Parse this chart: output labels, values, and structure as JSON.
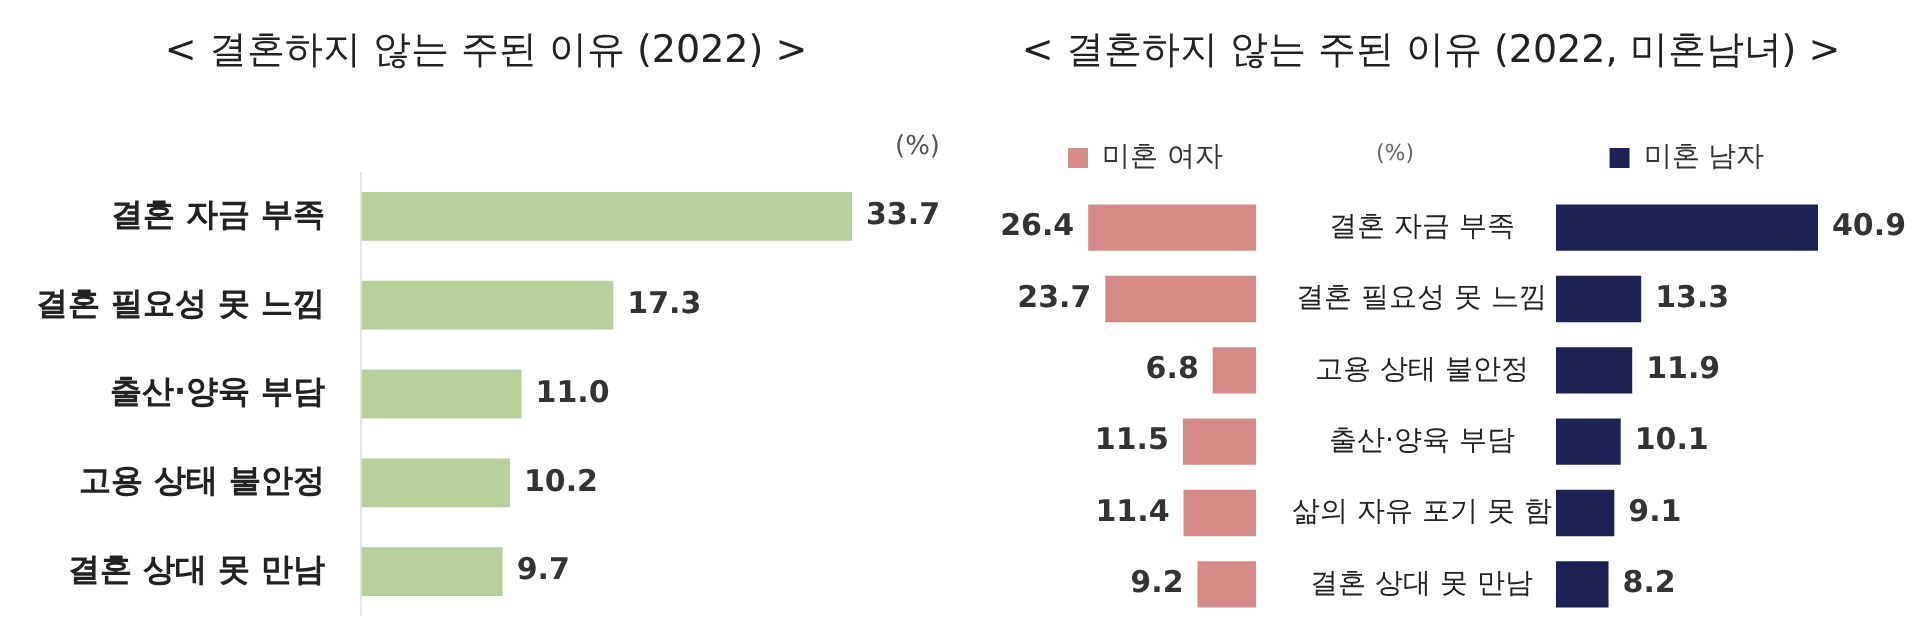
{
  "chart_data": [
    {
      "type": "bar",
      "orientation": "horizontal",
      "title": "< 결혼하지 않는 주된 이유 (2022) >",
      "categories": [
        "결혼 자금 부족",
        "결혼 필요성 못 느낌",
        "출산·양육 부담",
        "고용 상태 불안정",
        "결혼 상대 못 만남"
      ],
      "values": [
        33.7,
        17.3,
        11.0,
        10.2,
        9.7
      ],
      "color": "#b7cf9a",
      "value_labels": [
        "33.7",
        "17.3",
        "11.0",
        "10.2",
        "9.7"
      ],
      "annotations": [
        "(%)"
      ]
    },
    {
      "type": "bar",
      "orientation": "horizontal",
      "title": "< 결혼하지 않는 주된 이유 (2022, 미혼남녀) >",
      "categories": [
        "결혼 자금 부족",
        "결혼 필요성 못 느낌",
        "고용 상태 불안정",
        "출산·양육 부담",
        "삶의 자유 포기 못 함",
        "결혼 상대 못 만남"
      ],
      "series": [
        {
          "name": "미혼 여자",
          "color": "#d48a87",
          "values": [
            26.4,
            23.7,
            6.8,
            11.5,
            11.4,
            9.2
          ]
        }
      ],
      "data_labels": true,
      "legend": "top",
      "annotations": [
        "(%)"
      ]
    },
    {
      "type": "bar",
      "orientation": "horizontal",
      "categories": [
        null,
        null,
        null,
        null,
        null,
        null
      ],
      "series": [
        {
          "name": "미혼 남자",
          "color": "#1e2154",
          "values": [
            40.9,
            13.3,
            11.9,
            10.1,
            9.1,
            8.2
          ]
        }
      ],
      "data_labels": true,
      "legend": "top",
      "tick_labels": false
    }
  ]
}
